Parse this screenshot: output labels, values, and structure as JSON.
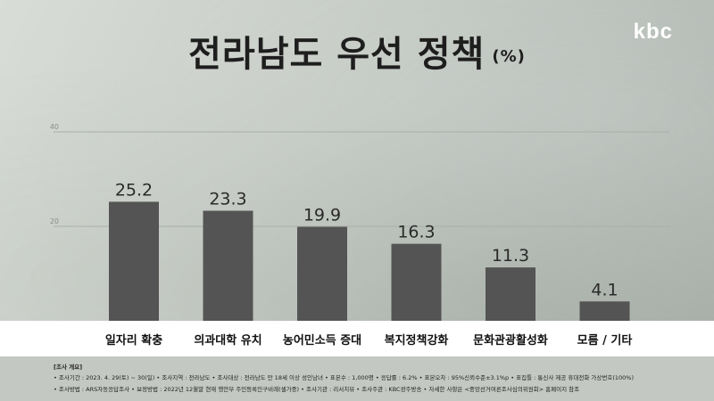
{
  "header": {
    "title": "전라남도 우선 정책",
    "unit": "(%)",
    "logo": "kbc"
  },
  "chart_data": {
    "type": "bar",
    "categories": [
      "일자리 확충",
      "의과대학 유치",
      "농어민소득 증대",
      "복지정책강화",
      "문화관광활성화",
      "모름 / 기타"
    ],
    "values": [
      25.2,
      23.3,
      19.9,
      16.3,
      11.3,
      4.1
    ],
    "data_labels": [
      "25.2",
      "23.3",
      "19.9",
      "16.3",
      "11.3",
      "4.1"
    ],
    "ylim": [
      0,
      40
    ],
    "yticks": [
      20,
      40
    ],
    "grid": true,
    "bar_color": "#545454"
  },
  "notes": {
    "heading": "[조사 개요]",
    "line1": "• 조사기간 : 2023. 4. 29(토) ~ 30(일)  • 조사지역 : 전라남도  • 조사대상 : 전라남도 만 18세 이상 성인남녀  • 표본수 : 1,000명  • 응답률 : 6.2%  • 표본오차 : 95%신뢰수준±3.1%p  • 표집틀 : 통신사 제공 휴대전화 가상번호(100%)",
    "line2": "• 조사방법 : ARS자동응답조사  • 보정방법 : 2022년 12월말 현재 행안부 주민등록인구비례(셀가중)  • 조사기관 : 리서치뷰  • 조사주관 : KBC광주방송  • 자세한 사항은 <중앙선거여론조사심의위원회> 홈페이지 참조"
  }
}
